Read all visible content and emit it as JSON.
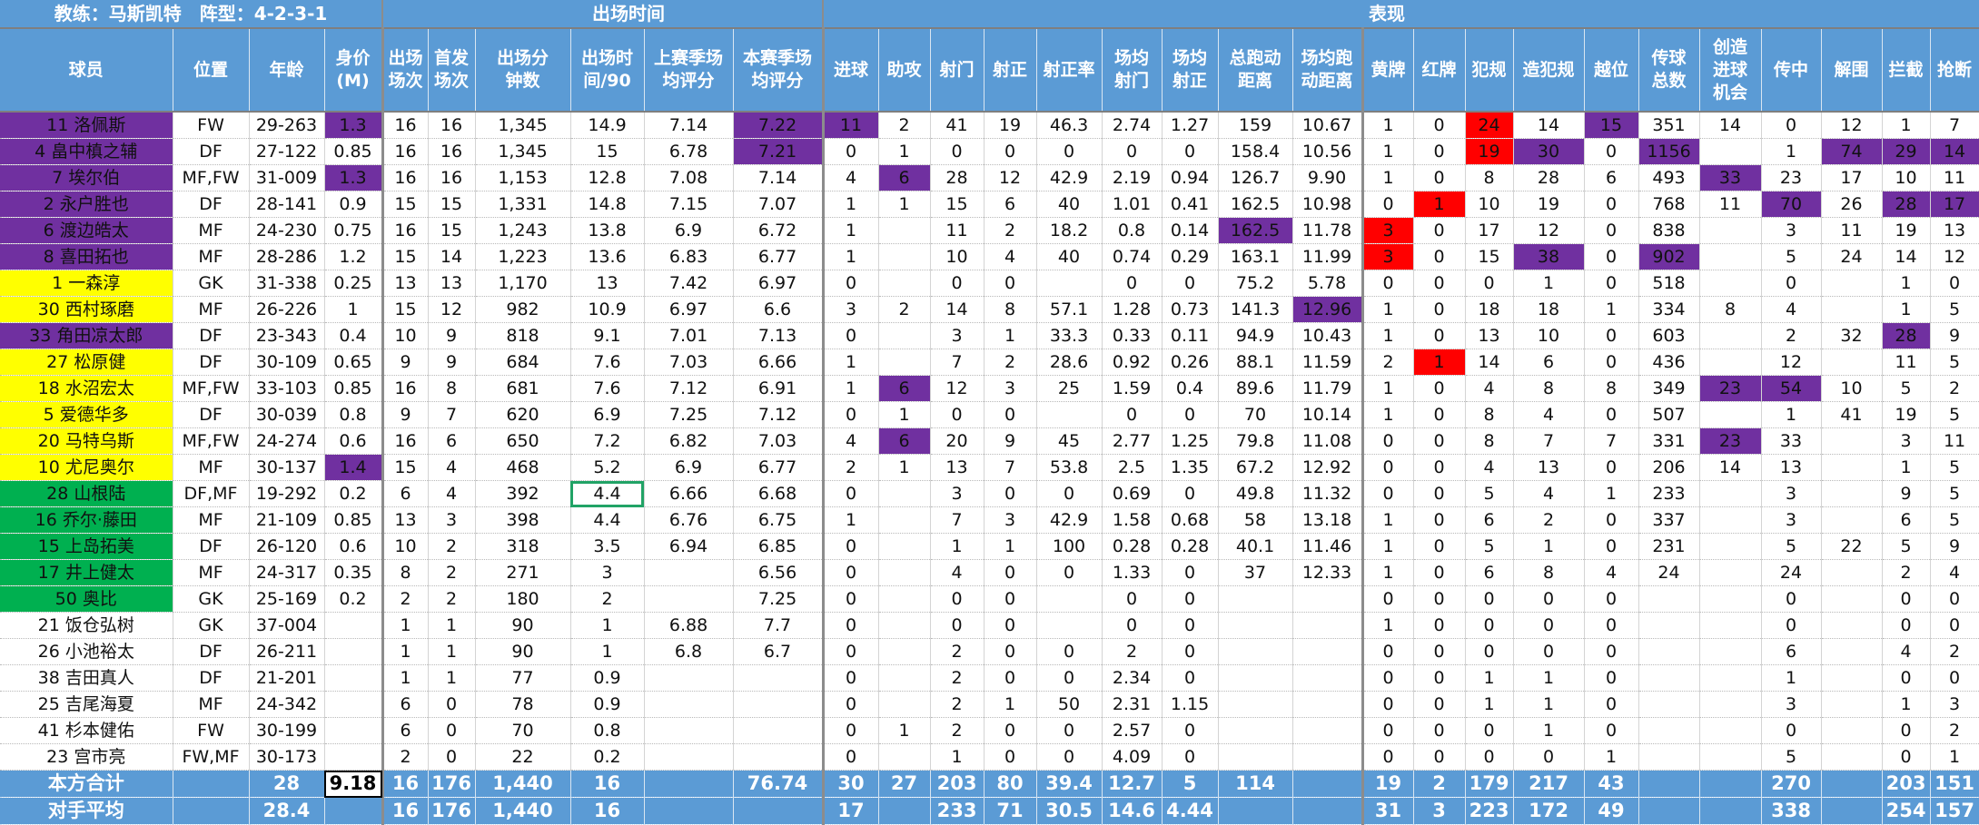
{
  "header": {
    "coach_label": "教练：马斯凯特　阵型：4-2-3-1",
    "groups": {
      "playtime": "出场时间",
      "performance": "表现"
    }
  },
  "columns": [
    "球员",
    "位置",
    "年龄",
    "身价(M)",
    "出场场次",
    "首发场次",
    "出场分钟数",
    "出场时间/90",
    "上赛季场均评分",
    "本赛季场均评分",
    "进球",
    "助攻",
    "射门",
    "射正",
    "射正率",
    "场均射门",
    "场均射正",
    "总跑动距离",
    "场均跑动距离",
    "黄牌",
    "红牌",
    "犯规",
    "造犯规",
    "越位",
    "传球总数",
    "创造进球机会",
    "传中",
    "解围",
    "拦截",
    "抢断"
  ],
  "column_headers_display": [
    [
      "球员"
    ],
    [
      "位置"
    ],
    [
      "年龄"
    ],
    [
      "身价",
      "(M)"
    ],
    [
      "出场",
      "场次"
    ],
    [
      "首发",
      "场次"
    ],
    [
      "出场分",
      "钟数"
    ],
    [
      "出场时",
      "间/90"
    ],
    [
      "上赛季场",
      "均评分"
    ],
    [
      "本赛季场",
      "均评分"
    ],
    [
      "进球"
    ],
    [
      "助攻"
    ],
    [
      "射门"
    ],
    [
      "射正"
    ],
    [
      "射正率"
    ],
    [
      "场均",
      "射门"
    ],
    [
      "场均",
      "射正"
    ],
    [
      "总跑动",
      "距离"
    ],
    [
      "场均跑",
      "动距离"
    ],
    [
      "黄牌"
    ],
    [
      "红牌"
    ],
    [
      "犯规"
    ],
    [
      "造犯规"
    ],
    [
      "越位"
    ],
    [
      "传球",
      "总数"
    ],
    [
      "创造",
      "进球",
      "机会"
    ],
    [
      "传中"
    ],
    [
      "解围"
    ],
    [
      "拦截"
    ],
    [
      "抢断"
    ]
  ],
  "colors": {
    "header_blue": "#5b9bd5",
    "purple": "#7030a0",
    "yellow": "#ffff00",
    "green": "#00b050",
    "red": "#ff0000",
    "selection": "#21a366"
  },
  "rows": [
    {
      "group": "purple",
      "cells": [
        "11 洛佩斯",
        "FW",
        "29-263",
        "1.3",
        "16",
        "16",
        "1,345",
        "14.9",
        "7.14",
        "7.22",
        "11",
        "2",
        "41",
        "19",
        "46.3",
        "2.74",
        "1.27",
        "159",
        "10.67",
        "1",
        "0",
        "24",
        "14",
        "15",
        "351",
        "14",
        "0",
        "12",
        "1",
        "7"
      ],
      "hl": {
        "3": "purple",
        "9": "purple",
        "10": "purple",
        "21": "red",
        "23": "purple"
      }
    },
    {
      "group": "purple",
      "cells": [
        "4 畠中槙之辅",
        "DF",
        "27-122",
        "0.85",
        "16",
        "16",
        "1,345",
        "15",
        "6.78",
        "7.21",
        "0",
        "1",
        "0",
        "0",
        "0",
        "0",
        "0",
        "158.4",
        "10.56",
        "1",
        "0",
        "19",
        "30",
        "0",
        "1156",
        "",
        "1",
        "74",
        "29",
        "14"
      ],
      "hl": {
        "9": "purple",
        "21": "red",
        "22": "purple",
        "24": "purple",
        "27": "purple",
        "28": "purple",
        "29": "purple"
      }
    },
    {
      "group": "purple",
      "cells": [
        "7 埃尔伯",
        "MF,FW",
        "31-009",
        "1.3",
        "16",
        "16",
        "1,153",
        "12.8",
        "7.08",
        "7.14",
        "4",
        "6",
        "28",
        "12",
        "42.9",
        "2.19",
        "0.94",
        "126.7",
        "9.90",
        "1",
        "0",
        "8",
        "28",
        "6",
        "493",
        "33",
        "23",
        "17",
        "10",
        "11"
      ],
      "hl": {
        "3": "purple",
        "11": "purple",
        "25": "purple"
      }
    },
    {
      "group": "purple",
      "cells": [
        "2 永户胜也",
        "DF",
        "28-141",
        "0.9",
        "15",
        "15",
        "1,331",
        "14.8",
        "7.15",
        "7.07",
        "1",
        "1",
        "15",
        "6",
        "40",
        "1.01",
        "0.41",
        "162.5",
        "10.98",
        "0",
        "1",
        "10",
        "19",
        "0",
        "768",
        "11",
        "70",
        "26",
        "28",
        "17"
      ],
      "hl": {
        "20": "red",
        "26": "purple",
        "28": "purple",
        "29": "purple"
      }
    },
    {
      "group": "purple",
      "cells": [
        "6 渡边皓太",
        "MF",
        "24-230",
        "0.75",
        "16",
        "15",
        "1,243",
        "13.8",
        "6.9",
        "6.72",
        "1",
        "",
        "11",
        "2",
        "18.2",
        "0.8",
        "0.14",
        "162.5",
        "11.78",
        "3",
        "0",
        "17",
        "12",
        "0",
        "838",
        "",
        "3",
        "11",
        "19",
        "13"
      ],
      "hl": {
        "17": "purple",
        "19": "red"
      }
    },
    {
      "group": "purple",
      "cells": [
        "8 喜田拓也",
        "MF",
        "28-286",
        "1.2",
        "15",
        "14",
        "1,223",
        "13.6",
        "6.83",
        "6.77",
        "1",
        "",
        "10",
        "4",
        "40",
        "0.74",
        "0.29",
        "163.1",
        "11.99",
        "3",
        "0",
        "15",
        "38",
        "0",
        "902",
        "",
        "5",
        "24",
        "14",
        "12"
      ],
      "hl": {
        "19": "red",
        "22": "purple",
        "24": "purple"
      }
    },
    {
      "group": "yellow",
      "cells": [
        "1 一森淳",
        "GK",
        "31-338",
        "0.25",
        "13",
        "13",
        "1,170",
        "13",
        "7.42",
        "6.97",
        "0",
        "",
        "0",
        "0",
        "",
        "0",
        "0",
        "75.2",
        "5.78",
        "0",
        "0",
        "0",
        "1",
        "0",
        "518",
        "",
        "0",
        "",
        "1",
        "0"
      ],
      "hl": {}
    },
    {
      "group": "yellow",
      "cells": [
        "30 西村琢磨",
        "MF",
        "26-226",
        "1",
        "15",
        "12",
        "982",
        "10.9",
        "6.97",
        "6.6",
        "3",
        "2",
        "14",
        "8",
        "57.1",
        "1.28",
        "0.73",
        "141.3",
        "12.96",
        "1",
        "0",
        "18",
        "18",
        "1",
        "334",
        "8",
        "4",
        "",
        "1",
        "5"
      ],
      "hl": {
        "18": "purple"
      }
    },
    {
      "group": "purple",
      "cells": [
        "33 角田凉太郎",
        "DF",
        "23-343",
        "0.4",
        "10",
        "9",
        "818",
        "9.1",
        "7.01",
        "7.13",
        "0",
        "",
        "3",
        "1",
        "33.3",
        "0.33",
        "0.11",
        "94.9",
        "10.43",
        "1",
        "0",
        "13",
        "10",
        "0",
        "603",
        "",
        "2",
        "32",
        "28",
        "9"
      ],
      "hl": {
        "28": "purple"
      }
    },
    {
      "group": "yellow",
      "cells": [
        "27 松原健",
        "DF",
        "30-109",
        "0.65",
        "9",
        "9",
        "684",
        "7.6",
        "7.03",
        "6.66",
        "1",
        "",
        "7",
        "2",
        "28.6",
        "0.92",
        "0.26",
        "88.1",
        "11.59",
        "2",
        "1",
        "14",
        "6",
        "0",
        "436",
        "",
        "12",
        "",
        "11",
        "5"
      ],
      "hl": {
        "20": "red"
      }
    },
    {
      "group": "yellow",
      "cells": [
        "18 水沼宏太",
        "MF,FW",
        "33-103",
        "0.85",
        "16",
        "8",
        "681",
        "7.6",
        "7.12",
        "6.91",
        "1",
        "6",
        "12",
        "3",
        "25",
        "1.59",
        "0.4",
        "89.6",
        "11.79",
        "1",
        "0",
        "4",
        "8",
        "8",
        "349",
        "23",
        "54",
        "10",
        "5",
        "2"
      ],
      "hl": {
        "11": "purple",
        "25": "purple",
        "26": "purple"
      }
    },
    {
      "group": "yellow",
      "cells": [
        "5 爱德华多",
        "DF",
        "30-039",
        "0.8",
        "9",
        "7",
        "620",
        "6.9",
        "7.25",
        "7.12",
        "0",
        "1",
        "0",
        "0",
        "",
        "0",
        "0",
        "70",
        "10.14",
        "1",
        "0",
        "8",
        "4",
        "0",
        "507",
        "",
        "1",
        "41",
        "19",
        "5"
      ],
      "hl": {}
    },
    {
      "group": "yellow",
      "cells": [
        "20 马特乌斯",
        "MF,FW",
        "24-274",
        "0.6",
        "16",
        "6",
        "650",
        "7.2",
        "6.82",
        "7.03",
        "4",
        "6",
        "20",
        "9",
        "45",
        "2.77",
        "1.25",
        "79.8",
        "11.08",
        "0",
        "0",
        "8",
        "7",
        "7",
        "331",
        "23",
        "33",
        "",
        "3",
        "11"
      ],
      "hl": {
        "11": "purple",
        "25": "purple"
      }
    },
    {
      "group": "yellow",
      "cells": [
        "10 尤尼奥尔",
        "MF",
        "30-137",
        "1.4",
        "15",
        "4",
        "468",
        "5.2",
        "6.9",
        "6.77",
        "2",
        "1",
        "13",
        "7",
        "53.8",
        "2.5",
        "1.35",
        "67.2",
        "12.92",
        "0",
        "0",
        "4",
        "13",
        "0",
        "206",
        "14",
        "13",
        "",
        "1",
        "5"
      ],
      "hl": {
        "3": "purple"
      }
    },
    {
      "group": "green",
      "cells": [
        "28 山根陆",
        "DF,MF",
        "19-292",
        "0.2",
        "6",
        "4",
        "392",
        "4.4",
        "6.66",
        "6.68",
        "0",
        "",
        "3",
        "0",
        "0",
        "0.69",
        "0",
        "49.8",
        "11.32",
        "0",
        "0",
        "5",
        "4",
        "1",
        "233",
        "",
        "3",
        "",
        "9",
        "5"
      ],
      "hl": {},
      "selected": "7"
    },
    {
      "group": "green",
      "cells": [
        "16 乔尔·藤田",
        "MF",
        "21-109",
        "0.85",
        "13",
        "3",
        "398",
        "4.4",
        "6.76",
        "6.75",
        "1",
        "",
        "7",
        "3",
        "42.9",
        "1.58",
        "0.68",
        "58",
        "13.18",
        "1",
        "0",
        "6",
        "2",
        "0",
        "337",
        "",
        "3",
        "",
        "6",
        "5"
      ],
      "hl": {}
    },
    {
      "group": "green",
      "cells": [
        "15 上岛拓美",
        "DF",
        "26-120",
        "0.6",
        "10",
        "2",
        "318",
        "3.5",
        "6.94",
        "6.85",
        "0",
        "",
        "1",
        "1",
        "100",
        "0.28",
        "0.28",
        "40.1",
        "11.46",
        "1",
        "0",
        "5",
        "1",
        "0",
        "231",
        "",
        "5",
        "22",
        "5",
        "9"
      ],
      "hl": {}
    },
    {
      "group": "green",
      "cells": [
        "17 井上健太",
        "MF",
        "24-317",
        "0.35",
        "8",
        "2",
        "271",
        "3",
        "",
        "6.56",
        "0",
        "",
        "4",
        "0",
        "0",
        "1.33",
        "0",
        "37",
        "12.33",
        "1",
        "0",
        "6",
        "8",
        "4",
        "24",
        "",
        "24",
        "",
        "2",
        "4"
      ],
      "hl": {}
    },
    {
      "group": "green",
      "cells": [
        "50 奥比",
        "GK",
        "25-169",
        "0.2",
        "2",
        "2",
        "180",
        "2",
        "",
        "7.25",
        "0",
        "",
        "0",
        "0",
        "",
        "0",
        "0",
        "",
        "",
        "0",
        "0",
        "0",
        "0",
        "0",
        "",
        "",
        "0",
        "",
        "0",
        "0"
      ],
      "hl": {}
    },
    {
      "group": "none",
      "cells": [
        "21 饭仓弘树",
        "GK",
        "37-004",
        "",
        "1",
        "1",
        "90",
        "1",
        "6.88",
        "7.7",
        "0",
        "",
        "0",
        "0",
        "",
        "0",
        "0",
        "",
        "",
        "1",
        "0",
        "0",
        "0",
        "0",
        "",
        "",
        "0",
        "",
        "0",
        "0"
      ],
      "hl": {}
    },
    {
      "group": "none",
      "cells": [
        "26 小池裕太",
        "DF",
        "26-211",
        "",
        "1",
        "1",
        "90",
        "1",
        "6.8",
        "6.7",
        "0",
        "",
        "2",
        "0",
        "0",
        "2",
        "0",
        "",
        "",
        "0",
        "0",
        "0",
        "0",
        "0",
        "",
        "",
        "6",
        "",
        "4",
        "2"
      ],
      "hl": {}
    },
    {
      "group": "none",
      "cells": [
        "38 吉田真人",
        "DF",
        "21-201",
        "",
        "1",
        "1",
        "77",
        "0.9",
        "",
        "",
        "0",
        "",
        "2",
        "0",
        "0",
        "2.34",
        "0",
        "",
        "",
        "0",
        "0",
        "1",
        "1",
        "0",
        "",
        "",
        "1",
        "",
        "0",
        "0"
      ],
      "hl": {}
    },
    {
      "group": "none",
      "cells": [
        "25 吉尾海夏",
        "MF",
        "24-342",
        "",
        "6",
        "0",
        "78",
        "0.9",
        "",
        "",
        "0",
        "",
        "2",
        "1",
        "50",
        "2.31",
        "1.15",
        "",
        "",
        "0",
        "0",
        "1",
        "1",
        "0",
        "",
        "",
        "3",
        "",
        "1",
        "3"
      ],
      "hl": {}
    },
    {
      "group": "none",
      "cells": [
        "41 杉本健佑",
        "FW",
        "30-199",
        "",
        "6",
        "0",
        "70",
        "0.8",
        "",
        "",
        "0",
        "1",
        "2",
        "0",
        "0",
        "2.57",
        "0",
        "",
        "",
        "0",
        "0",
        "0",
        "1",
        "0",
        "",
        "",
        "0",
        "",
        "0",
        "2"
      ],
      "hl": {}
    },
    {
      "group": "none",
      "cells": [
        "23 宫市亮",
        "FW,MF",
        "30-173",
        "",
        "2",
        "0",
        "22",
        "0.2",
        "",
        "",
        "0",
        "",
        "1",
        "0",
        "0",
        "4.09",
        "0",
        "",
        "",
        "0",
        "0",
        "0",
        "0",
        "1",
        "",
        "",
        "5",
        "",
        "0",
        "1"
      ],
      "hl": {}
    }
  ],
  "summary": [
    {
      "cells": [
        "本方合计",
        "",
        "28",
        "9.18",
        "16",
        "176",
        "1,440",
        "16",
        "",
        "76.74",
        "30",
        "27",
        "203",
        "80",
        "39.4",
        "12.7",
        "5",
        "114",
        "",
        "19",
        "2",
        "179",
        "217",
        "43",
        "",
        "",
        "270",
        "",
        "203",
        "151"
      ],
      "boxed": "3"
    },
    {
      "cells": [
        "对手平均",
        "",
        "28.4",
        "",
        "16",
        "176",
        "1,440",
        "16",
        "",
        "",
        "17",
        "",
        "233",
        "71",
        "30.5",
        "14.6",
        "4.44",
        "",
        "",
        "31",
        "3",
        "223",
        "172",
        "49",
        "",
        "",
        "338",
        "",
        "254",
        "157"
      ]
    }
  ]
}
